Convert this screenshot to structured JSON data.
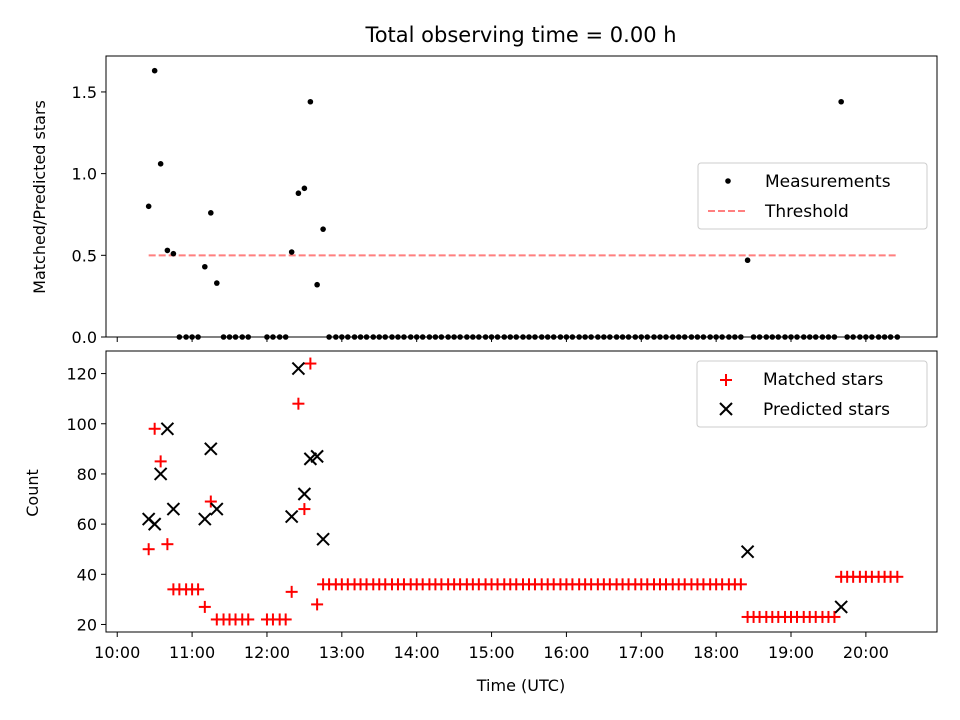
{
  "figure": {
    "title": "Total observing time = 0.00 h",
    "xlabel": "Time (UTC)",
    "xticks": [
      "10:00",
      "11:00",
      "12:00",
      "13:00",
      "14:00",
      "15:00",
      "16:00",
      "17:00",
      "18:00",
      "19:00",
      "20:00"
    ]
  },
  "chart_data": [
    {
      "type": "scatter",
      "title": "Total observing time = 0.00 h",
      "ylabel": "Matched/Predicted stars",
      "xlabel": "",
      "x_unit": "hours UTC",
      "xlim": [
        9.85,
        20.95
      ],
      "ylim": [
        0,
        1.72
      ],
      "yticks": [
        "0.0",
        "0.5",
        "1.0",
        "1.5"
      ],
      "legend": {
        "position": "center-right",
        "entries": [
          "Measurements",
          "Threshold"
        ]
      },
      "colors": {
        "measurements": "#000000",
        "threshold": "#ff7f7f"
      },
      "series": [
        {
          "name": "Measurements",
          "points": [
            [
              10.42,
              0.8
            ],
            [
              10.5,
              1.63
            ],
            [
              10.58,
              1.06
            ],
            [
              10.67,
              0.53
            ],
            [
              10.75,
              0.51
            ],
            [
              10.83,
              0
            ],
            [
              10.92,
              0
            ],
            [
              11.0,
              0
            ],
            [
              11.08,
              0
            ],
            [
              11.17,
              0.43
            ],
            [
              11.25,
              0.76
            ],
            [
              11.33,
              0.33
            ],
            [
              11.42,
              0
            ],
            [
              11.5,
              0
            ],
            [
              11.58,
              0
            ],
            [
              11.67,
              0
            ],
            [
              11.75,
              0
            ],
            [
              12.0,
              0
            ],
            [
              12.08,
              0
            ],
            [
              12.17,
              0
            ],
            [
              12.25,
              0
            ],
            [
              12.33,
              0.52
            ],
            [
              12.42,
              0.88
            ],
            [
              12.5,
              0.91
            ],
            [
              12.58,
              1.44
            ],
            [
              12.67,
              0.32
            ],
            [
              12.75,
              0.66
            ],
            [
              12.83,
              0
            ],
            [
              12.92,
              0
            ],
            [
              13.0,
              0
            ],
            [
              13.08,
              0
            ],
            [
              13.17,
              0
            ],
            [
              13.25,
              0
            ],
            [
              13.33,
              0
            ],
            [
              13.42,
              0
            ],
            [
              13.5,
              0
            ],
            [
              13.58,
              0
            ],
            [
              13.67,
              0
            ],
            [
              13.75,
              0
            ],
            [
              13.83,
              0
            ],
            [
              13.92,
              0
            ],
            [
              14.0,
              0
            ],
            [
              14.08,
              0
            ],
            [
              14.17,
              0
            ],
            [
              14.25,
              0
            ],
            [
              14.33,
              0
            ],
            [
              14.42,
              0
            ],
            [
              14.5,
              0
            ],
            [
              14.58,
              0
            ],
            [
              14.67,
              0
            ],
            [
              14.75,
              0
            ],
            [
              14.83,
              0
            ],
            [
              14.92,
              0
            ],
            [
              15.0,
              0
            ],
            [
              15.08,
              0
            ],
            [
              15.17,
              0
            ],
            [
              15.25,
              0
            ],
            [
              15.33,
              0
            ],
            [
              15.42,
              0
            ],
            [
              15.5,
              0
            ],
            [
              15.58,
              0
            ],
            [
              15.67,
              0
            ],
            [
              15.75,
              0
            ],
            [
              15.83,
              0
            ],
            [
              15.92,
              0
            ],
            [
              16.0,
              0
            ],
            [
              16.08,
              0
            ],
            [
              16.17,
              0
            ],
            [
              16.25,
              0
            ],
            [
              16.33,
              0
            ],
            [
              16.42,
              0
            ],
            [
              16.5,
              0
            ],
            [
              16.58,
              0
            ],
            [
              16.67,
              0
            ],
            [
              16.75,
              0
            ],
            [
              16.83,
              0
            ],
            [
              16.92,
              0
            ],
            [
              17.0,
              0
            ],
            [
              17.08,
              0
            ],
            [
              17.17,
              0
            ],
            [
              17.25,
              0
            ],
            [
              17.33,
              0
            ],
            [
              17.42,
              0
            ],
            [
              17.5,
              0
            ],
            [
              17.58,
              0
            ],
            [
              17.67,
              0
            ],
            [
              17.75,
              0
            ],
            [
              17.83,
              0
            ],
            [
              17.92,
              0
            ],
            [
              18.0,
              0
            ],
            [
              18.08,
              0
            ],
            [
              18.17,
              0
            ],
            [
              18.25,
              0
            ],
            [
              18.33,
              0
            ],
            [
              18.42,
              0.47
            ],
            [
              18.5,
              0
            ],
            [
              18.58,
              0
            ],
            [
              18.67,
              0
            ],
            [
              18.75,
              0
            ],
            [
              18.83,
              0
            ],
            [
              18.92,
              0
            ],
            [
              19.0,
              0
            ],
            [
              19.08,
              0
            ],
            [
              19.17,
              0
            ],
            [
              19.25,
              0
            ],
            [
              19.33,
              0
            ],
            [
              19.42,
              0
            ],
            [
              19.5,
              0
            ],
            [
              19.58,
              0
            ],
            [
              19.67,
              1.44
            ],
            [
              19.75,
              0
            ],
            [
              19.83,
              0
            ],
            [
              19.92,
              0
            ],
            [
              20.0,
              0
            ],
            [
              20.08,
              0
            ],
            [
              20.17,
              0
            ],
            [
              20.25,
              0
            ],
            [
              20.33,
              0
            ],
            [
              20.42,
              0
            ]
          ]
        },
        {
          "name": "Threshold",
          "style": "dashed",
          "points": [
            [
              10.42,
              0.5
            ],
            [
              20.42,
              0.5
            ]
          ]
        }
      ]
    },
    {
      "type": "scatter",
      "ylabel": "Count",
      "xlabel": "Time (UTC)",
      "x_unit": "hours UTC",
      "xlim": [
        9.85,
        20.95
      ],
      "ylim": [
        17,
        129
      ],
      "yticks": [
        "20",
        "40",
        "60",
        "80",
        "100",
        "120"
      ],
      "legend": {
        "position": "top-right",
        "entries": [
          "Matched stars",
          "Predicted stars"
        ]
      },
      "colors": {
        "matched": "#ff0000",
        "predicted": "#000000"
      },
      "series": [
        {
          "name": "Matched stars",
          "marker": "+",
          "points": [
            [
              10.42,
              50
            ],
            [
              10.5,
              98
            ],
            [
              10.58,
              85
            ],
            [
              10.67,
              52
            ],
            [
              10.75,
              34
            ],
            [
              10.83,
              34
            ],
            [
              10.92,
              34
            ],
            [
              11.0,
              34
            ],
            [
              11.08,
              34
            ],
            [
              11.17,
              27
            ],
            [
              11.25,
              69
            ],
            [
              11.33,
              22
            ],
            [
              11.42,
              22
            ],
            [
              11.5,
              22
            ],
            [
              11.58,
              22
            ],
            [
              11.67,
              22
            ],
            [
              11.75,
              22
            ],
            [
              12.0,
              22
            ],
            [
              12.08,
              22
            ],
            [
              12.17,
              22
            ],
            [
              12.25,
              22
            ],
            [
              12.33,
              33
            ],
            [
              12.42,
              108
            ],
            [
              12.5,
              66
            ],
            [
              12.58,
              124
            ],
            [
              12.67,
              28
            ],
            [
              12.75,
              36
            ],
            [
              12.83,
              36
            ],
            [
              12.92,
              36
            ],
            [
              13.0,
              36
            ],
            [
              13.08,
              36
            ],
            [
              13.17,
              36
            ],
            [
              13.25,
              36
            ],
            [
              13.33,
              36
            ],
            [
              13.42,
              36
            ],
            [
              13.5,
              36
            ],
            [
              13.58,
              36
            ],
            [
              13.67,
              36
            ],
            [
              13.75,
              36
            ],
            [
              13.83,
              36
            ],
            [
              13.92,
              36
            ],
            [
              14.0,
              36
            ],
            [
              14.08,
              36
            ],
            [
              14.17,
              36
            ],
            [
              14.25,
              36
            ],
            [
              14.33,
              36
            ],
            [
              14.42,
              36
            ],
            [
              14.5,
              36
            ],
            [
              14.58,
              36
            ],
            [
              14.67,
              36
            ],
            [
              14.75,
              36
            ],
            [
              14.83,
              36
            ],
            [
              14.92,
              36
            ],
            [
              15.0,
              36
            ],
            [
              15.08,
              36
            ],
            [
              15.17,
              36
            ],
            [
              15.25,
              36
            ],
            [
              15.33,
              36
            ],
            [
              15.42,
              36
            ],
            [
              15.5,
              36
            ],
            [
              15.58,
              36
            ],
            [
              15.67,
              36
            ],
            [
              15.75,
              36
            ],
            [
              15.83,
              36
            ],
            [
              15.92,
              36
            ],
            [
              16.0,
              36
            ],
            [
              16.08,
              36
            ],
            [
              16.17,
              36
            ],
            [
              16.25,
              36
            ],
            [
              16.33,
              36
            ],
            [
              16.42,
              36
            ],
            [
              16.5,
              36
            ],
            [
              16.58,
              36
            ],
            [
              16.67,
              36
            ],
            [
              16.75,
              36
            ],
            [
              16.83,
              36
            ],
            [
              16.92,
              36
            ],
            [
              17.0,
              36
            ],
            [
              17.08,
              36
            ],
            [
              17.17,
              36
            ],
            [
              17.25,
              36
            ],
            [
              17.33,
              36
            ],
            [
              17.42,
              36
            ],
            [
              17.5,
              36
            ],
            [
              17.58,
              36
            ],
            [
              17.67,
              36
            ],
            [
              17.75,
              36
            ],
            [
              17.83,
              36
            ],
            [
              17.92,
              36
            ],
            [
              18.0,
              36
            ],
            [
              18.08,
              36
            ],
            [
              18.17,
              36
            ],
            [
              18.25,
              36
            ],
            [
              18.33,
              36
            ],
            [
              18.42,
              23
            ],
            [
              18.5,
              23
            ],
            [
              18.58,
              23
            ],
            [
              18.67,
              23
            ],
            [
              18.75,
              23
            ],
            [
              18.83,
              23
            ],
            [
              18.92,
              23
            ],
            [
              19.0,
              23
            ],
            [
              19.08,
              23
            ],
            [
              19.17,
              23
            ],
            [
              19.25,
              23
            ],
            [
              19.33,
              23
            ],
            [
              19.42,
              23
            ],
            [
              19.5,
              23
            ],
            [
              19.58,
              23
            ],
            [
              19.67,
              39
            ],
            [
              19.75,
              39
            ],
            [
              19.83,
              39
            ],
            [
              19.92,
              39
            ],
            [
              20.0,
              39
            ],
            [
              20.08,
              39
            ],
            [
              20.17,
              39
            ],
            [
              20.25,
              39
            ],
            [
              20.33,
              39
            ],
            [
              20.42,
              39
            ]
          ]
        },
        {
          "name": "Predicted stars",
          "marker": "x",
          "points": [
            [
              10.42,
              62
            ],
            [
              10.5,
              60
            ],
            [
              10.58,
              80
            ],
            [
              10.67,
              98
            ],
            [
              10.75,
              66
            ],
            [
              11.17,
              62
            ],
            [
              11.25,
              90
            ],
            [
              11.33,
              66
            ],
            [
              12.33,
              63
            ],
            [
              12.42,
              122
            ],
            [
              12.5,
              72
            ],
            [
              12.58,
              86
            ],
            [
              12.67,
              87
            ],
            [
              12.75,
              54
            ],
            [
              18.42,
              49
            ],
            [
              19.67,
              27
            ]
          ]
        }
      ]
    }
  ]
}
